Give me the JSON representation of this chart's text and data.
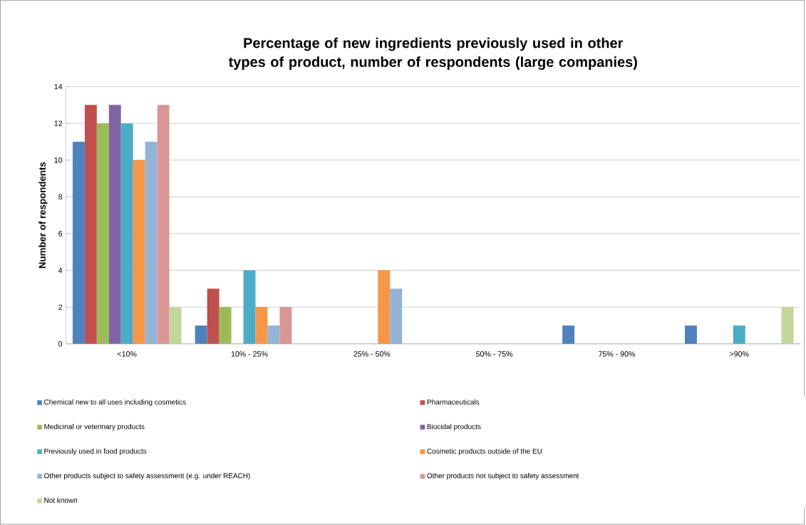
{
  "chart_data": {
    "type": "bar",
    "title": "Percentage of new ingredients previously used in other types of product, number of respondents (large companies)",
    "ylabel": "Number of respondents",
    "categories": [
      "<10%",
      "10% - 25%",
      "25% - 50%",
      "50% - 75%",
      "75% - 90%",
      ">90%"
    ],
    "ylim": [
      0,
      14
    ],
    "yticks": [
      0,
      2,
      4,
      6,
      8,
      10,
      12,
      14
    ],
    "grid": "y",
    "legend": "bottom",
    "series": [
      {
        "name": "Chemical new to all uses including cosmetics",
        "color": "#4f81bd",
        "values": [
          11,
          1,
          0,
          0,
          1,
          1
        ]
      },
      {
        "name": "Pharmaceuticals",
        "color": "#c0504d",
        "values": [
          13,
          3,
          0,
          0,
          0,
          0
        ]
      },
      {
        "name": "Medicinal or veterinary products",
        "color": "#9bbb59",
        "values": [
          12,
          2,
          0,
          0,
          0,
          0
        ]
      },
      {
        "name": "Biocidal products",
        "color": "#8064a2",
        "values": [
          13,
          0,
          0,
          0,
          0,
          0
        ]
      },
      {
        "name": "Previously used in food products",
        "color": "#4bacc6",
        "values": [
          12,
          4,
          0,
          0,
          0,
          1
        ]
      },
      {
        "name": "Cosmetic products outside of the EU",
        "color": "#f79646",
        "values": [
          10,
          2,
          4,
          0,
          0,
          0
        ]
      },
      {
        "name": "Other products subject to safety assessment (e.g. under REACH)",
        "color": "#95b3d7",
        "values": [
          11,
          1,
          3,
          0,
          0,
          0
        ]
      },
      {
        "name": "Other products not subject to safety assessment",
        "color": "#d99694",
        "values": [
          13,
          2,
          0,
          0,
          0,
          0
        ]
      },
      {
        "name": "Not known",
        "color": "#c3d69b",
        "values": [
          2,
          0,
          0,
          0,
          0,
          2
        ]
      }
    ]
  }
}
